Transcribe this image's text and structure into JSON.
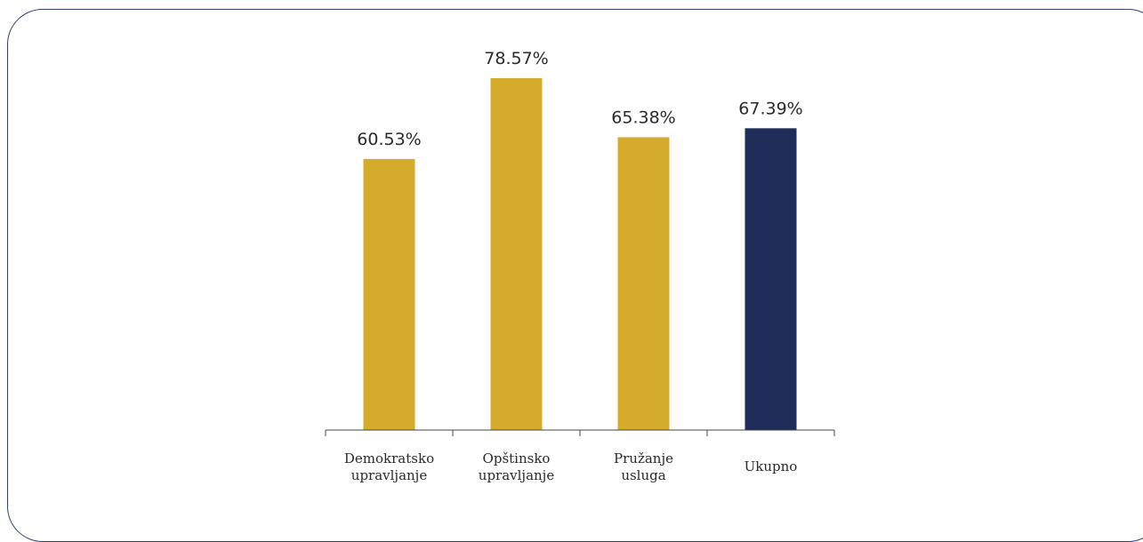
{
  "chart_data": {
    "type": "bar",
    "categories": [
      [
        "Demokratsko",
        "upravljanje"
      ],
      [
        "Opštinsko",
        "upravljanje"
      ],
      [
        "Pružanje",
        "usluga"
      ],
      [
        "Ukupno"
      ]
    ],
    "values": [
      60.53,
      78.57,
      65.38,
      67.39
    ],
    "value_labels": [
      "60.53%",
      "78.57%",
      "65.38%",
      "67.39%"
    ],
    "bar_colors": [
      "#d4ab2a",
      "#d4ab2a",
      "#d4ab2a",
      "#1e2e59"
    ],
    "title": "",
    "xlabel": "",
    "ylabel": "",
    "ylim": [
      0,
      100
    ],
    "grid": false,
    "legend": "none"
  },
  "colors": {
    "frame_border": "#34406a",
    "axis": "#444444"
  }
}
